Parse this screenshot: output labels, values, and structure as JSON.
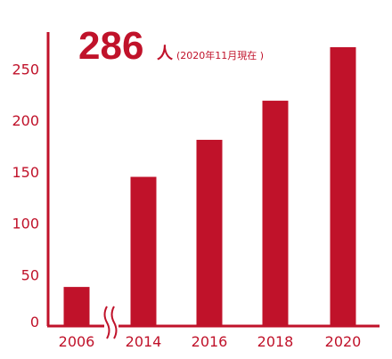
{
  "headline": {
    "number": "286",
    "unit": "人",
    "note": "(2020年11月現在 )"
  },
  "colors": {
    "accent": "#c0122a",
    "background": "#ffffff"
  },
  "chart_data": {
    "type": "bar",
    "categories": [
      "2006",
      "2014",
      "2016",
      "2018",
      "2020"
    ],
    "values": [
      38,
      145,
      181,
      219,
      271
    ],
    "ylim": [
      0,
      285
    ],
    "yticks": [
      0,
      50,
      100,
      150,
      200,
      250
    ],
    "axis_break_between": [
      "2006",
      "2014"
    ],
    "grid": false,
    "title": "",
    "xlabel": "",
    "ylabel": ""
  }
}
